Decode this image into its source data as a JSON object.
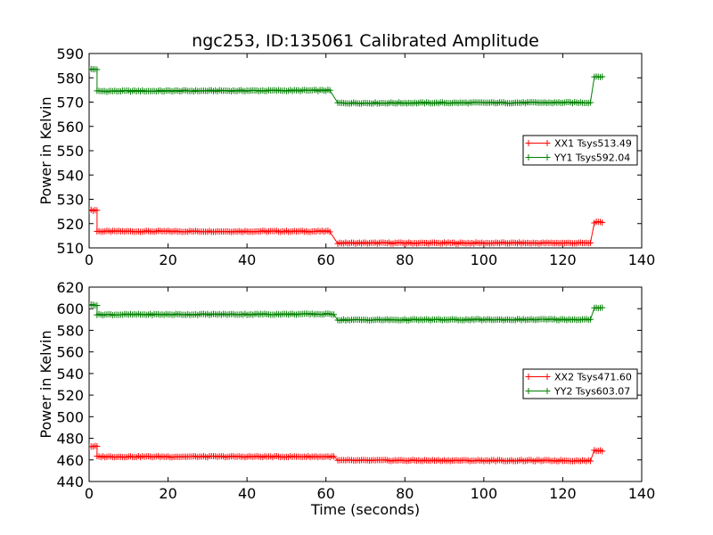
{
  "chart_data": [
    {
      "type": "line",
      "title": "ngc253, ID:135061 Calibrated Amplitude",
      "xlabel": "",
      "ylabel": "Power in Kelvin",
      "xlim": [
        0,
        140
      ],
      "ylim": [
        510,
        590
      ],
      "xticks": [
        0,
        20,
        40,
        60,
        80,
        100,
        120,
        140
      ],
      "yticks": [
        510,
        520,
        530,
        540,
        550,
        560,
        570,
        580,
        590
      ],
      "grid": false,
      "legend_position": "center-right",
      "series": [
        {
          "name": "XX1 Tsys513.49",
          "color": "#ff0000",
          "marker": "plus",
          "segments": [
            {
              "x": [
                0,
                2
              ],
              "y": [
                525.5,
                525.5
              ]
            },
            {
              "x": [
                2,
                61
              ],
              "y": [
                516.8,
                516.8
              ]
            },
            {
              "x": [
                63,
                127
              ],
              "y": [
                512.0,
                512.0
              ]
            },
            {
              "x": [
                128,
                130
              ],
              "y": [
                520.5,
                520.5
              ]
            }
          ]
        },
        {
          "name": "YY1 Tsys592.04",
          "color": "#008000",
          "marker": "plus",
          "segments": [
            {
              "x": [
                0,
                2
              ],
              "y": [
                583.5,
                583.5
              ]
            },
            {
              "x": [
                2,
                61
              ],
              "y": [
                574.5,
                574.8
              ]
            },
            {
              "x": [
                63,
                127
              ],
              "y": [
                569.6,
                569.8
              ]
            },
            {
              "x": [
                128,
                130
              ],
              "y": [
                580.5,
                580.5
              ]
            }
          ]
        }
      ]
    },
    {
      "type": "line",
      "title": "",
      "xlabel": "Time (seconds)",
      "ylabel": "Power in Kelvin",
      "xlim": [
        0,
        140
      ],
      "ylim": [
        440,
        620
      ],
      "xticks": [
        0,
        20,
        40,
        60,
        80,
        100,
        120,
        140
      ],
      "yticks": [
        440,
        460,
        480,
        500,
        520,
        540,
        560,
        580,
        600,
        620
      ],
      "grid": false,
      "legend_position": "center-right",
      "series": [
        {
          "name": "XX2 Tsys471.60",
          "color": "#ff0000",
          "marker": "plus",
          "segments": [
            {
              "x": [
                0,
                2
              ],
              "y": [
                472.5,
                472.5
              ]
            },
            {
              "x": [
                2,
                62
              ],
              "y": [
                463.0,
                463.0
              ]
            },
            {
              "x": [
                63,
                127
              ],
              "y": [
                459.5,
                459.3
              ]
            },
            {
              "x": [
                128,
                130
              ],
              "y": [
                468.5,
                468.5
              ]
            }
          ]
        },
        {
          "name": "YY2 Tsys603.07",
          "color": "#008000",
          "marker": "plus",
          "segments": [
            {
              "x": [
                0,
                2
              ],
              "y": [
                603.5,
                603.5
              ]
            },
            {
              "x": [
                2,
                62
              ],
              "y": [
                594.5,
                595.0
              ]
            },
            {
              "x": [
                63,
                127
              ],
              "y": [
                589.6,
                590.0
              ]
            },
            {
              "x": [
                128,
                130
              ],
              "y": [
                600.5,
                600.5
              ]
            }
          ]
        }
      ]
    }
  ]
}
